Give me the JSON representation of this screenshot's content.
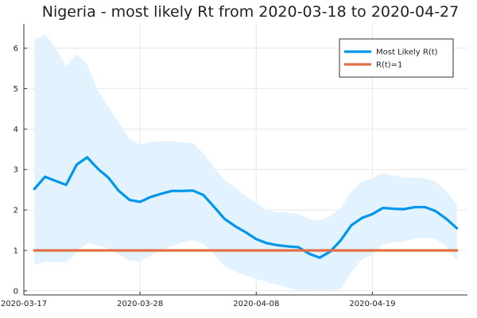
{
  "chart_data": {
    "type": "line",
    "title": "Nigeria - most likely Rt from 2020-03-18 to 2020-04-27",
    "xlabel": "",
    "ylabel": "",
    "x_start": "2020-03-18",
    "x_end": "2020-04-27",
    "xlim": [
      "2020-03-17",
      "2020-04-28"
    ],
    "ylim": [
      -0.1,
      6.6
    ],
    "x_ticks": [
      "2020-03-17",
      "2020-03-28",
      "2020-04-08",
      "2020-04-19"
    ],
    "y_ticks": [
      0,
      1,
      2,
      3,
      4,
      5,
      6
    ],
    "grid": true,
    "legend_position": "top-right",
    "series": [
      {
        "name": "Most Likely R(t)",
        "color": "#0096ea",
        "x_start": "2020-03-18",
        "values": [
          2.52,
          2.82,
          2.72,
          2.62,
          3.12,
          3.3,
          3.02,
          2.8,
          2.47,
          2.25,
          2.2,
          2.32,
          2.4,
          2.47,
          2.47,
          2.48,
          2.37,
          2.08,
          1.78,
          1.6,
          1.45,
          1.28,
          1.18,
          1.13,
          1.1,
          1.08,
          0.92,
          0.82,
          0.97,
          1.25,
          1.62,
          1.8,
          1.9,
          2.05,
          2.03,
          2.02,
          2.07,
          2.07,
          1.97,
          1.78,
          1.55
        ],
        "band_upper": [
          6.2,
          6.35,
          6.0,
          5.55,
          5.85,
          5.6,
          4.95,
          4.55,
          4.15,
          3.75,
          3.62,
          3.68,
          3.7,
          3.7,
          3.68,
          3.65,
          3.4,
          3.05,
          2.75,
          2.55,
          2.35,
          2.18,
          2.0,
          1.95,
          1.93,
          1.9,
          1.78,
          1.75,
          1.85,
          2.05,
          2.45,
          2.7,
          2.78,
          2.92,
          2.85,
          2.8,
          2.8,
          2.78,
          2.7,
          2.45,
          2.15
        ],
        "band_lower": [
          0.65,
          0.72,
          0.72,
          0.7,
          0.95,
          1.18,
          1.12,
          1.05,
          0.9,
          0.75,
          0.72,
          0.88,
          1.0,
          1.1,
          1.2,
          1.25,
          1.15,
          0.9,
          0.62,
          0.48,
          0.38,
          0.3,
          0.22,
          0.15,
          0.08,
          0.02,
          0.0,
          0.0,
          0.0,
          0.05,
          0.48,
          0.78,
          0.9,
          1.15,
          1.2,
          1.22,
          1.3,
          1.32,
          1.28,
          1.1,
          0.75
        ],
        "band_color": "#e3f2ff"
      },
      {
        "name": "R(t)=1",
        "color": "#e26f46",
        "x_start": "2020-03-18",
        "values": [
          1,
          1
        ]
      }
    ]
  }
}
